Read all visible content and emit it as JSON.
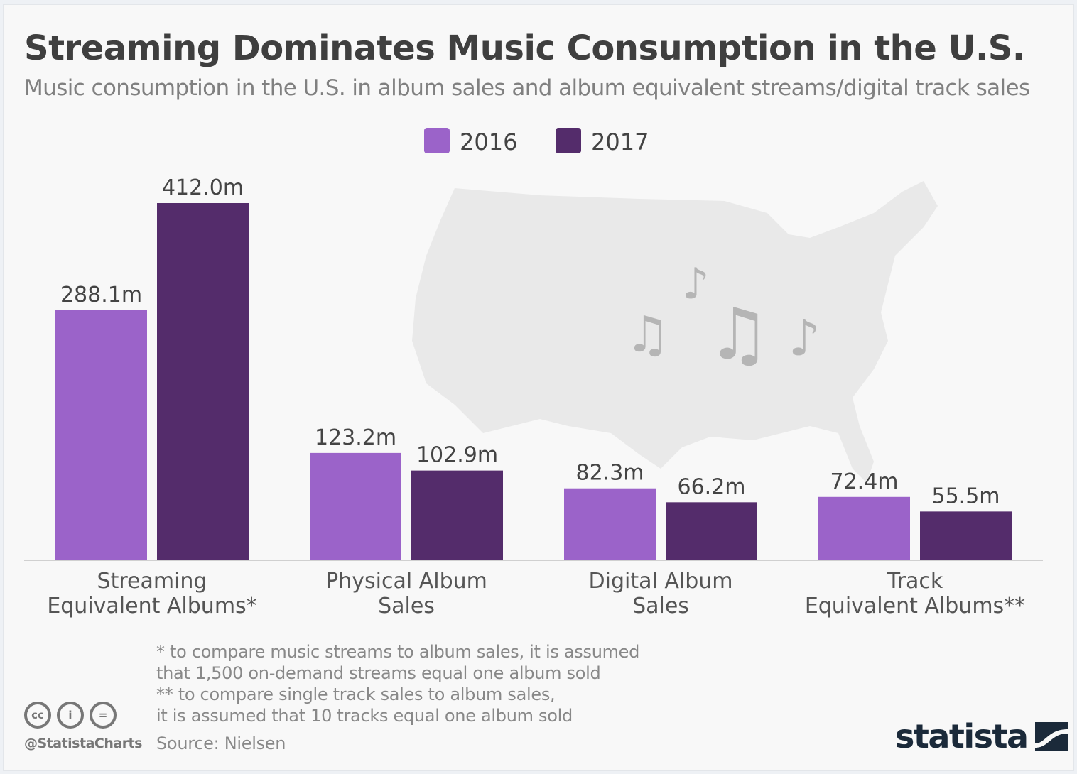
{
  "title": "Streaming Dominates Music Consumption in the U.S.",
  "subtitle": "Music consumption in the U.S. in album sales and album equivalent streams/digital track sales",
  "chart_data": {
    "type": "bar",
    "title": "Streaming Dominates Music Consumption in the U.S.",
    "subtitle": "Music consumption in the U.S. in album sales and album equivalent streams/digital track sales",
    "categories": [
      [
        "Streaming",
        "Equivalent Albums*"
      ],
      [
        "Physical Album",
        "Sales"
      ],
      [
        "Digital Album",
        "Sales"
      ],
      [
        "Track",
        "Equivalent Albums**"
      ]
    ],
    "series": [
      {
        "name": "2016",
        "color": "#9b63c9",
        "values": [
          288.1,
          123.2,
          82.3,
          72.4
        ],
        "labels": [
          "288.1m",
          "123.2m",
          "82.3m",
          "72.4m"
        ]
      },
      {
        "name": "2017",
        "color": "#542c6b",
        "values": [
          412.0,
          102.9,
          66.2,
          55.5
        ],
        "labels": [
          "412.0m",
          "102.9m",
          "66.2m",
          "55.5m"
        ]
      }
    ],
    "unit": "m",
    "ylim": [
      0,
      412
    ],
    "grid": false,
    "legend": "top-center",
    "xlabel": "",
    "ylabel": ""
  },
  "footnotes": [
    "*   to compare music streams to album sales, it is assumed",
    "     that 1,500 on-demand streams equal one album sold",
    "** to compare single track sales to album sales,",
    "     it is assumed that 10 tracks equal one album sold"
  ],
  "source": "Source: Nielsen",
  "handle": "@StatistaCharts",
  "license_icons": [
    "cc-icon",
    "attribution-icon",
    "no-derivatives-icon"
  ],
  "logo": "statista",
  "background_icons": [
    "us-map",
    "music-notes"
  ]
}
